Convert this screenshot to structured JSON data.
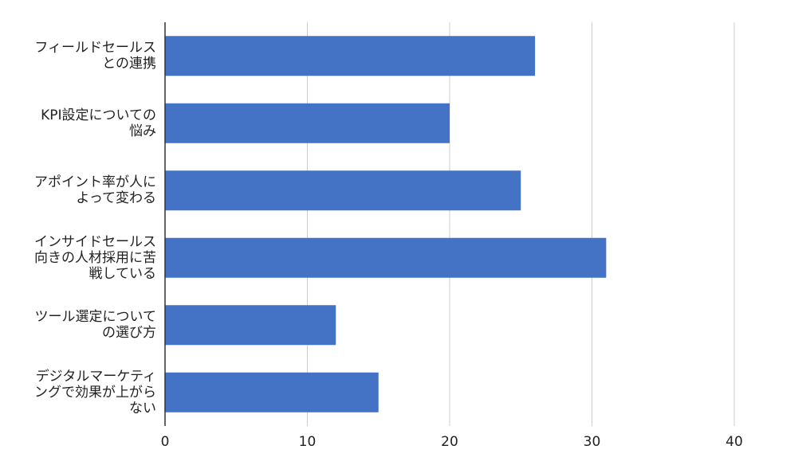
{
  "chart_data": {
    "type": "bar",
    "orientation": "horizontal",
    "categories": [
      "フィールドセールスとの連携",
      "KPI設定についての悩み",
      "アポイント率が人によって変わる",
      "インサイドセールス向きの人材採用に苦戦している",
      "ツール選定についての選び方",
      "デジタルマーケティングで効果が上がらない"
    ],
    "values": [
      26,
      20,
      25,
      31,
      12,
      15
    ],
    "color": "#4472c4",
    "xlim": [
      0,
      40
    ],
    "xticks": [
      0,
      10,
      20,
      30,
      40
    ],
    "grid": true
  }
}
